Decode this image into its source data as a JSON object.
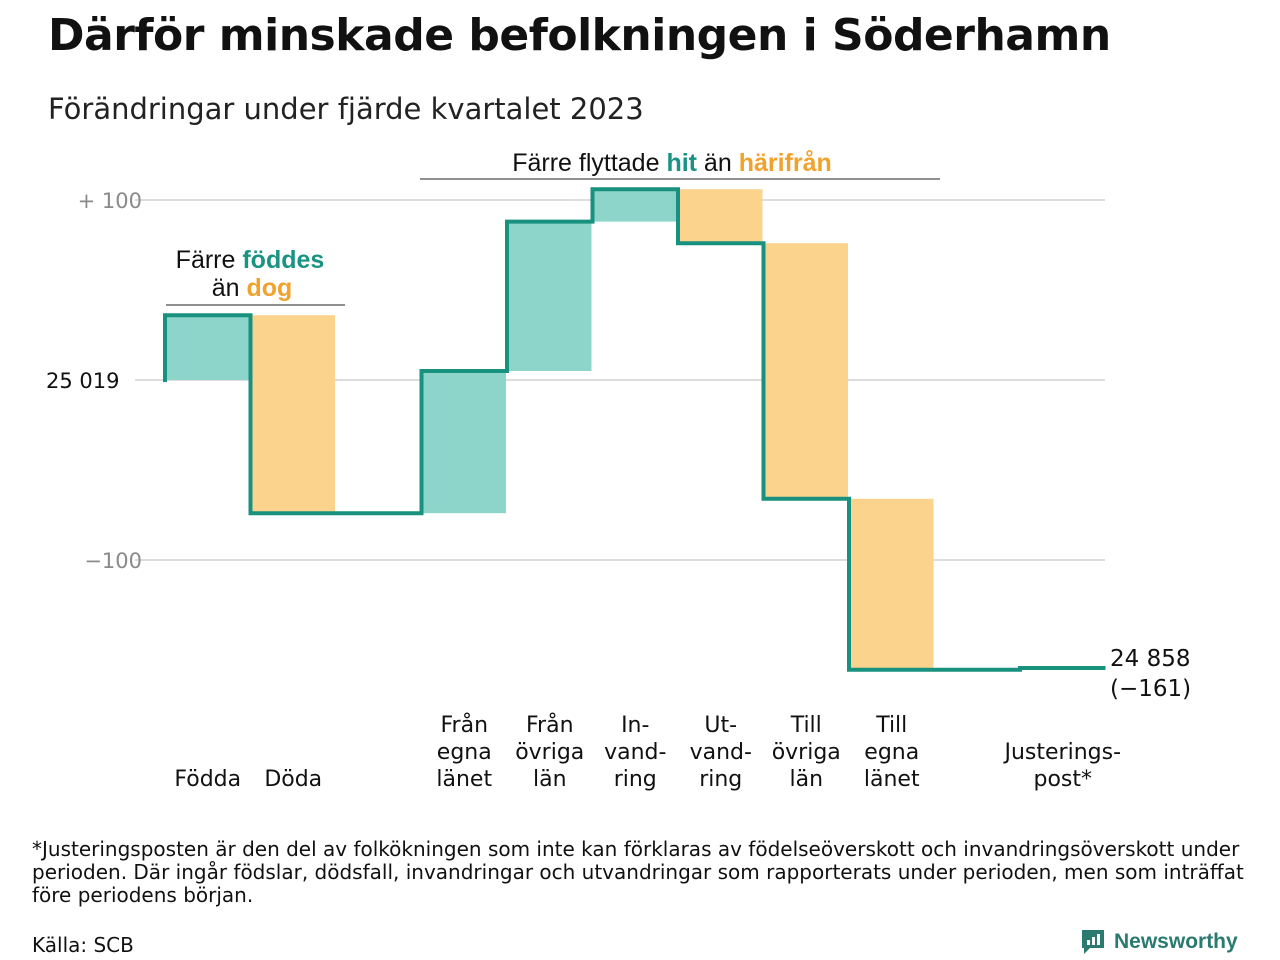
{
  "header": {
    "title": "Därför minskade befolkningen i Söderhamn",
    "subtitle": "Förändringar under fjärde kvartalet 2023"
  },
  "annotations": {
    "births": {
      "line1_a": "Färre ",
      "line1_b": "föddes",
      "line2_a": "än ",
      "line2_b": "dog"
    },
    "moves": {
      "part_a": "Färre flyttade ",
      "part_b": "hit",
      "part_c": " än ",
      "part_d": "härifrån"
    }
  },
  "chart_data": {
    "type": "waterfall",
    "start": {
      "label": "25  019",
      "value": 25019
    },
    "end": {
      "label_line1": "24 858",
      "label_line2": "(−161)",
      "value": 24858,
      "change": -161
    },
    "yticks": [
      {
        "label": "+  100",
        "value": 100
      },
      {
        "label": "−100",
        "value": -100
      }
    ],
    "ylim": [
      -175,
      105
    ],
    "steps": [
      {
        "label": [
          "Födda"
        ],
        "value": 36,
        "kind": "increase"
      },
      {
        "label": [
          "Döda"
        ],
        "value": -110,
        "kind": "decrease"
      },
      {
        "label": [],
        "value": 0,
        "kind": "none"
      },
      {
        "label": [
          "Från",
          "egna",
          "länet"
        ],
        "value": 79,
        "kind": "increase"
      },
      {
        "label": [
          "Från",
          "övriga",
          "län"
        ],
        "value": 83,
        "kind": "increase"
      },
      {
        "label": [
          "In-",
          "vand-",
          "ring"
        ],
        "value": 18,
        "kind": "increase"
      },
      {
        "label": [
          "Ut-",
          "vand-",
          "ring"
        ],
        "value": -30,
        "kind": "decrease"
      },
      {
        "label": [
          "Till",
          "övriga",
          "län"
        ],
        "value": -142,
        "kind": "decrease"
      },
      {
        "label": [
          "Till",
          "egna",
          "länet"
        ],
        "value": -95,
        "kind": "decrease"
      },
      {
        "label": [],
        "value": 0,
        "kind": "none"
      },
      {
        "label": [
          "Justerings-",
          "post*"
        ],
        "value": 1,
        "kind": "adjustment"
      }
    ],
    "colors": {
      "increase": "#8dd4cb",
      "decrease": "#fbd38d",
      "line": "#18917f",
      "hit": "#1a9383",
      "harifran": "#f0a22c",
      "grid": "#dddddd",
      "axis": "#8a8a8a"
    }
  },
  "footnote": "*Justeringsposten är den del av folkökningen som inte kan förklaras av födelseöverskott och invandringsöverskott under perioden. Där ingår födslar, dödsfall, invandringar och utvandringar som rapporterats under perioden, men som inträffat före periodens början.",
  "source": "Källa: SCB",
  "brand": {
    "name": "Newsworthy",
    "icon": "newsworthy-logo-icon"
  }
}
